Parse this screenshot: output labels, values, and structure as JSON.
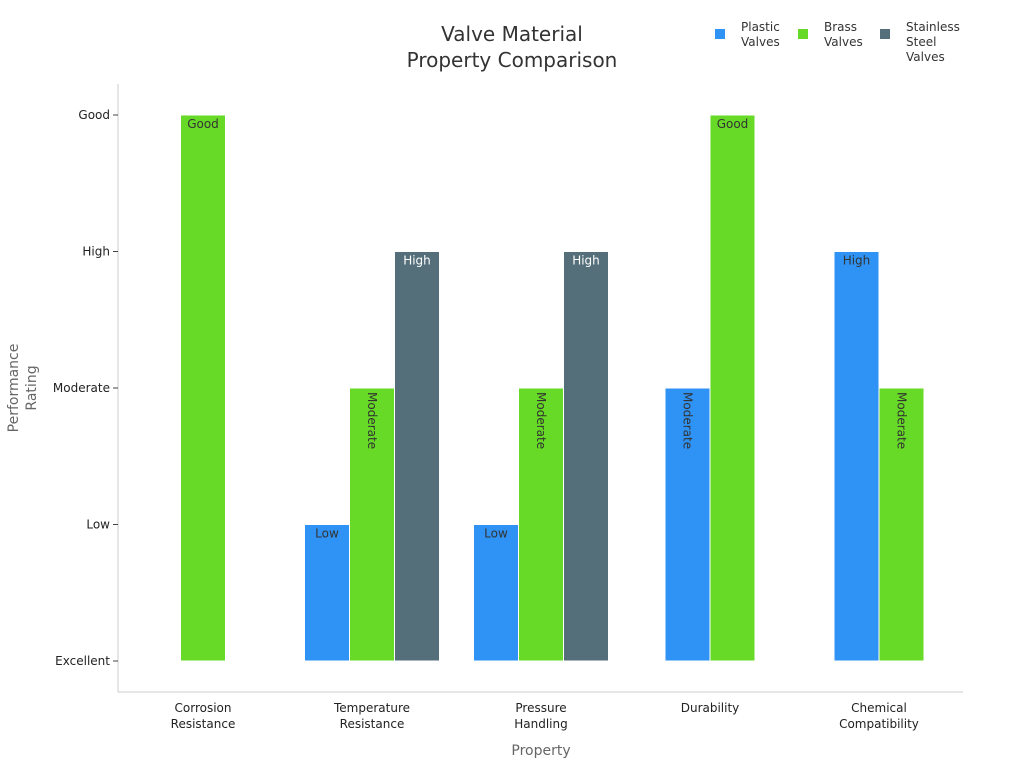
{
  "chart_data": {
    "type": "bar",
    "title": [
      "Valve Material",
      "Property Comparison"
    ],
    "xlabel": "Property",
    "ylabel": [
      "Performance",
      "Rating"
    ],
    "categories": [
      [
        "Corrosion",
        "Resistance"
      ],
      [
        "Temperature",
        "Resistance"
      ],
      [
        "Pressure",
        "Handling"
      ],
      [
        "Durability"
      ],
      [
        "Chemical",
        "Compatibility"
      ]
    ],
    "y_ticks": [
      "Excellent",
      "Low",
      "Moderate",
      "High",
      "Good"
    ],
    "ylim": [
      0,
      4
    ],
    "legend_position": "top-right",
    "grid": false,
    "series": [
      {
        "name": [
          "Plastic",
          "Valves"
        ],
        "color": "#2E93F5",
        "values": [
          null,
          1,
          1,
          2,
          3
        ],
        "labels": [
          null,
          "Low",
          "Low",
          "Moderate",
          "High"
        ]
      },
      {
        "name": [
          "Brass",
          "Valves"
        ],
        "color": "#66DA26",
        "values": [
          4,
          2,
          2,
          4,
          2
        ],
        "labels": [
          "Good",
          "Moderate",
          "Moderate",
          "Good",
          "Moderate"
        ]
      },
      {
        "name": [
          "Stainless",
          "Steel",
          "Valves"
        ],
        "color": "#546E7A",
        "values": [
          null,
          3,
          3,
          null,
          null
        ],
        "labels": [
          null,
          "High",
          "High",
          null,
          null
        ]
      }
    ]
  }
}
